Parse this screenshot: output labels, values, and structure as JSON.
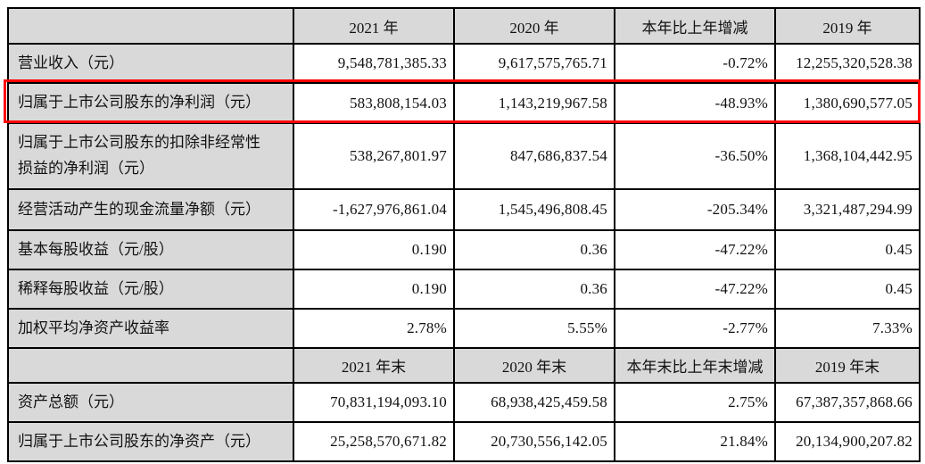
{
  "styles": {
    "header_bg": "#d9d9d9",
    "label_bg": "#d9d9d9",
    "border_color": "#000000",
    "highlight_border": "#ff0000",
    "value_bg": "#ffffff"
  },
  "period_section": {
    "headers": {
      "label": "",
      "col1": "2021 年",
      "col2": "2020 年",
      "col3": "本年比上年增减",
      "col4": "2019 年"
    },
    "rows": [
      {
        "label": "营业收入（元）",
        "values": [
          "9,548,781,385.33",
          "9,617,575,765.71",
          "-0.72%",
          "12,255,320,528.38"
        ],
        "highlighted": false
      },
      {
        "label": "归属于上市公司股东的净利润（元）",
        "values": [
          "583,808,154.03",
          "1,143,219,967.58",
          "-48.93%",
          "1,380,690,577.05"
        ],
        "highlighted": true
      },
      {
        "label": "归属于上市公司股东的扣除非经常性损益的净利润（元）",
        "values": [
          "538,267,801.97",
          "847,686,837.54",
          "-36.50%",
          "1,368,104,442.95"
        ],
        "highlighted": false
      },
      {
        "label": "经营活动产生的现金流量净额（元）",
        "values": [
          "-1,627,976,861.04",
          "1,545,496,808.45",
          "-205.34%",
          "3,321,487,294.99"
        ],
        "highlighted": false
      },
      {
        "label": "基本每股收益（元/股）",
        "values": [
          "0.190",
          "0.36",
          "-47.22%",
          "0.45"
        ],
        "highlighted": false
      },
      {
        "label": "稀释每股收益（元/股）",
        "values": [
          "0.190",
          "0.36",
          "-47.22%",
          "0.45"
        ],
        "highlighted": false
      },
      {
        "label": "加权平均净资产收益率",
        "values": [
          "2.78%",
          "5.55%",
          "-2.77%",
          "7.33%"
        ],
        "highlighted": false
      }
    ]
  },
  "yearend_section": {
    "headers": {
      "label": "",
      "col1": "2021 年末",
      "col2": "2020 年末",
      "col3": "本年末比上年末增减",
      "col4": "2019 年末"
    },
    "rows": [
      {
        "label": "资产总额（元）",
        "values": [
          "70,831,194,093.10",
          "68,938,425,459.58",
          "2.75%",
          "67,387,357,868.66"
        ],
        "highlighted": false
      },
      {
        "label": "归属于上市公司股东的净资产（元）",
        "values": [
          "25,258,570,671.82",
          "20,730,556,142.05",
          "21.84%",
          "20,134,900,207.82"
        ],
        "highlighted": false
      }
    ]
  }
}
